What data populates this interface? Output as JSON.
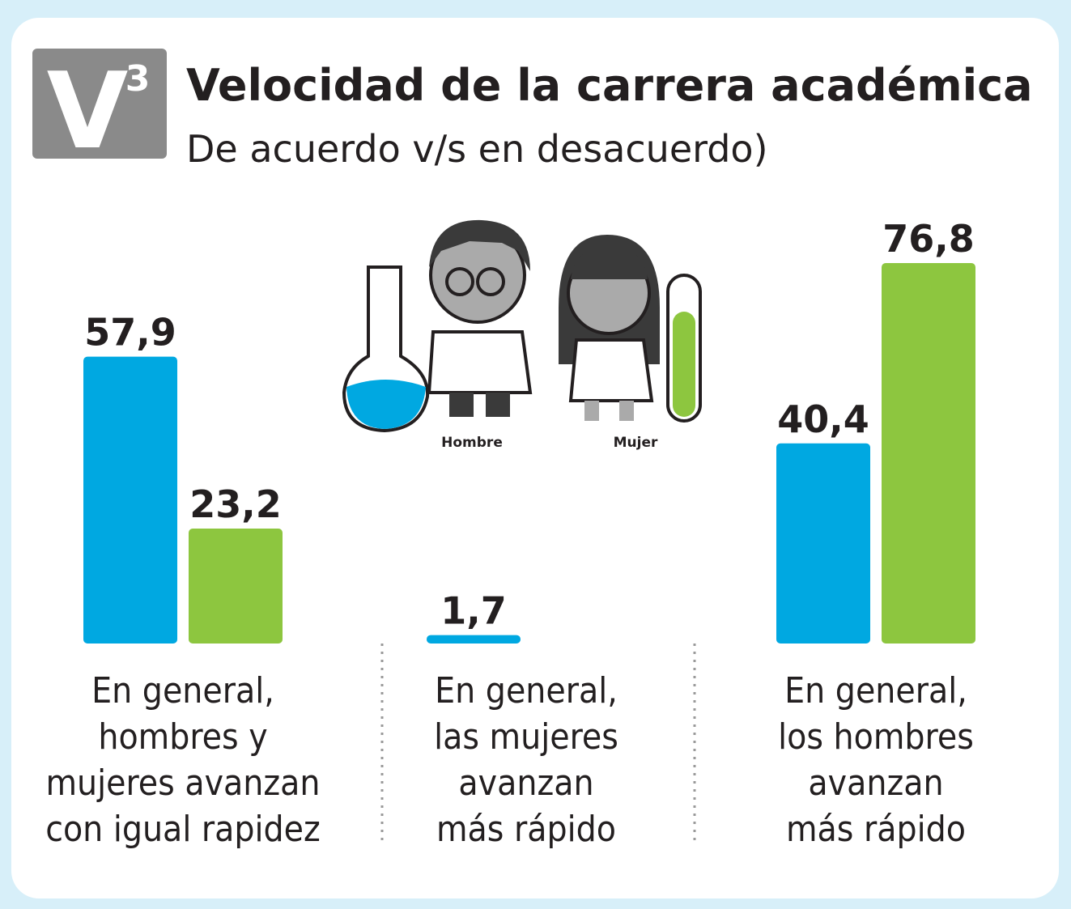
{
  "chart_data": {
    "type": "bar",
    "badge": {
      "letter": "V",
      "superscript": "3"
    },
    "title": "Velocidad de la carrera académica",
    "subtitle": "De acuerdo v/s en desacuerdo)",
    "categories": [
      [
        "En general,",
        "hombres y",
        "mujeres avanzan",
        "con igual rapidez"
      ],
      [
        "En general,",
        "las mujeres",
        "avanzan",
        "más rápido"
      ],
      [
        "En general,",
        "los hombres",
        "avanzan",
        "más rápido"
      ]
    ],
    "series": [
      {
        "name": "Hombre",
        "color": "#00a8e1",
        "values": [
          57.9,
          1.7,
          40.4
        ],
        "value_labels": [
          "57,9",
          "1,7",
          "40,4"
        ]
      },
      {
        "name": "Mujer",
        "color": "#8dc63f",
        "values": [
          23.2,
          null,
          76.8
        ],
        "value_labels": [
          "23,2",
          null,
          "76,8"
        ]
      }
    ]
  }
}
